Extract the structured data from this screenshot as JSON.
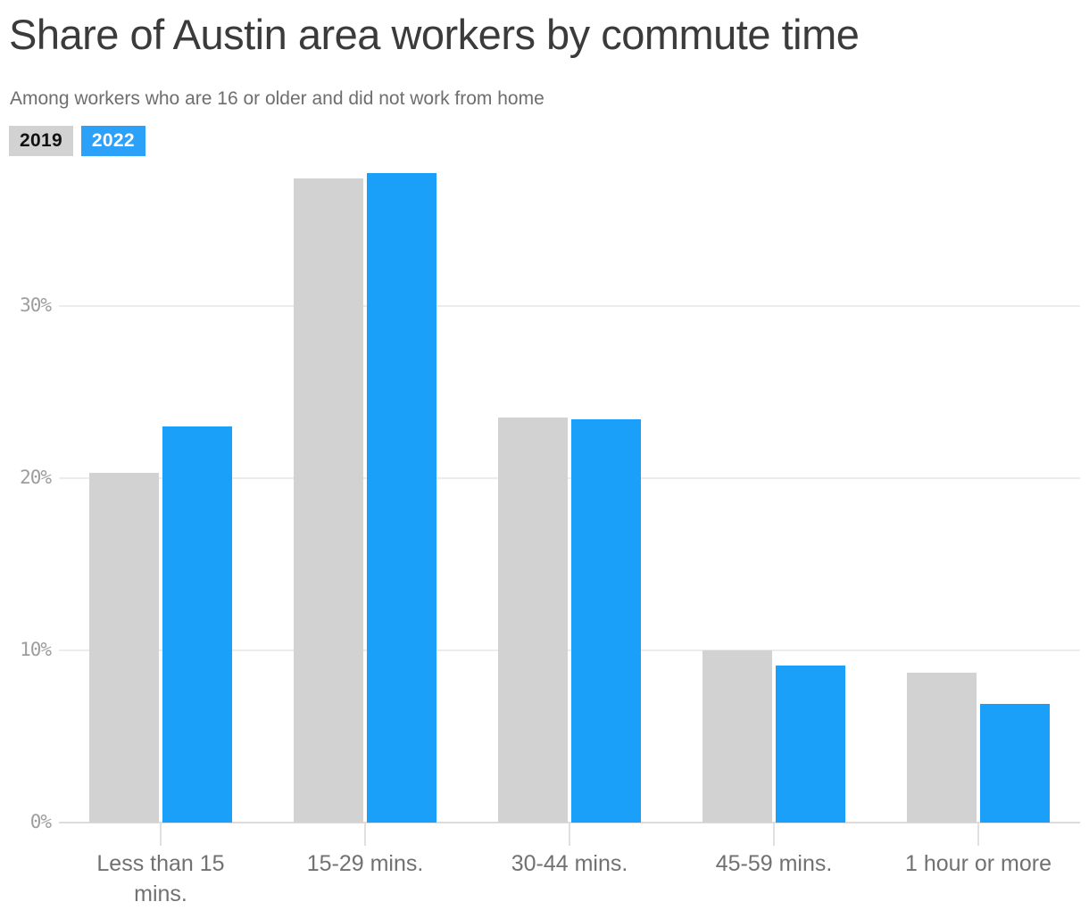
{
  "header": {
    "title": "Share of Austin area workers by commute time",
    "subtitle": "Among workers who are 16 or older and did not work from home"
  },
  "legend": [
    {
      "label": "2019",
      "color": "#d1d2d1",
      "text_color": "#111111"
    },
    {
      "label": "2022",
      "color": "#2ba1f9",
      "text_color": "#ffffff"
    }
  ],
  "chart_data": {
    "type": "bar",
    "title": "Share of Austin area workers by commute time",
    "subtitle": "Among workers who are 16 or older and did not work from home",
    "categories": [
      "Less than 15 mins.",
      "15-29 mins.",
      "30-44 mins.",
      "45-59 mins.",
      "1 hour or more"
    ],
    "series": [
      {
        "name": "2019",
        "color": "#d1d2d1",
        "values": [
          20.3,
          37.4,
          23.5,
          10.0,
          8.7
        ]
      },
      {
        "name": "2022",
        "color": "#1ba0f9",
        "values": [
          23.0,
          37.7,
          23.4,
          9.1,
          6.9
        ]
      }
    ],
    "ylabel": "",
    "xlabel": "",
    "ylim": [
      0,
      40
    ],
    "yticks": [
      0,
      10,
      20,
      30
    ],
    "ytick_labels": [
      "0%",
      "10%",
      "20%",
      "30%"
    ],
    "grid": "horizontal",
    "legend_position": "top-left",
    "colors": {
      "gridline": "#ececec",
      "baseline": "#dcdcdc",
      "axis_tick": "#e0e0e0",
      "title_text": "#3b3b3b",
      "subtitle_text": "#6e6e6e",
      "xtick_text": "#717171",
      "ytick_text": "#9d9d9d"
    }
  }
}
